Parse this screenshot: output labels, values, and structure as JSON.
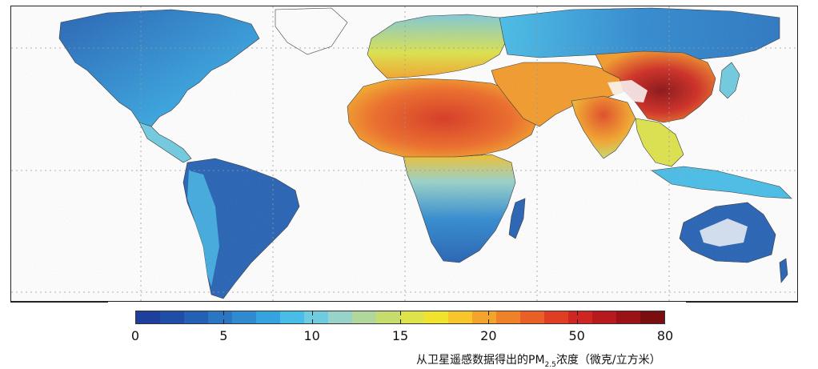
{
  "map": {
    "colorbar": {
      "colors": [
        "#1f3f9c",
        "#1f4ea8",
        "#2461b4",
        "#2a76c2",
        "#2f8ad0",
        "#35a3df",
        "#47bde8",
        "#6fcbe0",
        "#98d3c9",
        "#b0d89c",
        "#c6dd6d",
        "#dde34a",
        "#f1e22e",
        "#f7c62a",
        "#f4a42a",
        "#ef8128",
        "#e95f26",
        "#e03e23",
        "#cf2621",
        "#b8191c",
        "#9a1215",
        "#7a0d0f"
      ],
      "tick_labels": [
        "0",
        "5",
        "10",
        "15",
        "20",
        "50",
        "80"
      ]
    },
    "caption": {
      "text": "从卫星遥感数据得出的PM",
      "subscript": "2.5",
      "suffix": "浓度（微克/立方米）"
    }
  }
}
